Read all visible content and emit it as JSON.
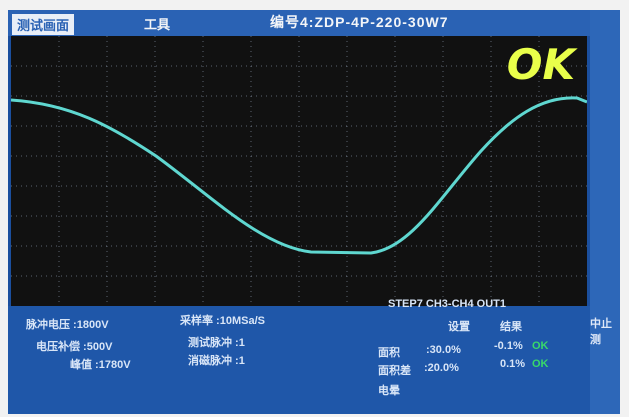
{
  "header": {
    "tab_active": "测试画面",
    "tab_tool": "工具",
    "model_label": "编号4:ZDP-4P-220-30W7"
  },
  "status": {
    "result": "OK"
  },
  "waveform": {
    "color": "#5fd7d0",
    "background": "#111111"
  },
  "settings": {
    "pulse_voltage": "脉冲电压 :1800V",
    "sample_rate": "采样率 :10MSa/S",
    "voltage_compensation": "电压补偿 :500V",
    "peak": "峰值 :1780V",
    "test_pulse": "测试脉冲 :1",
    "discharge_pulse": "消磁脉冲 :1"
  },
  "step_info": "STEP7 CH3-CH4 OUT1",
  "results": {
    "header_setting": "设置",
    "header_result": "结果",
    "row1_label": "面积",
    "row1_setting": ":30.0%",
    "row1_result": "-0.1%",
    "row1_status": "OK",
    "row2_label": "面积差",
    "row2_setting": ":20.0%",
    "row2_result": "0.1%",
    "row2_status": "OK",
    "row3_label": "电晕"
  },
  "side_text": "中止测"
}
